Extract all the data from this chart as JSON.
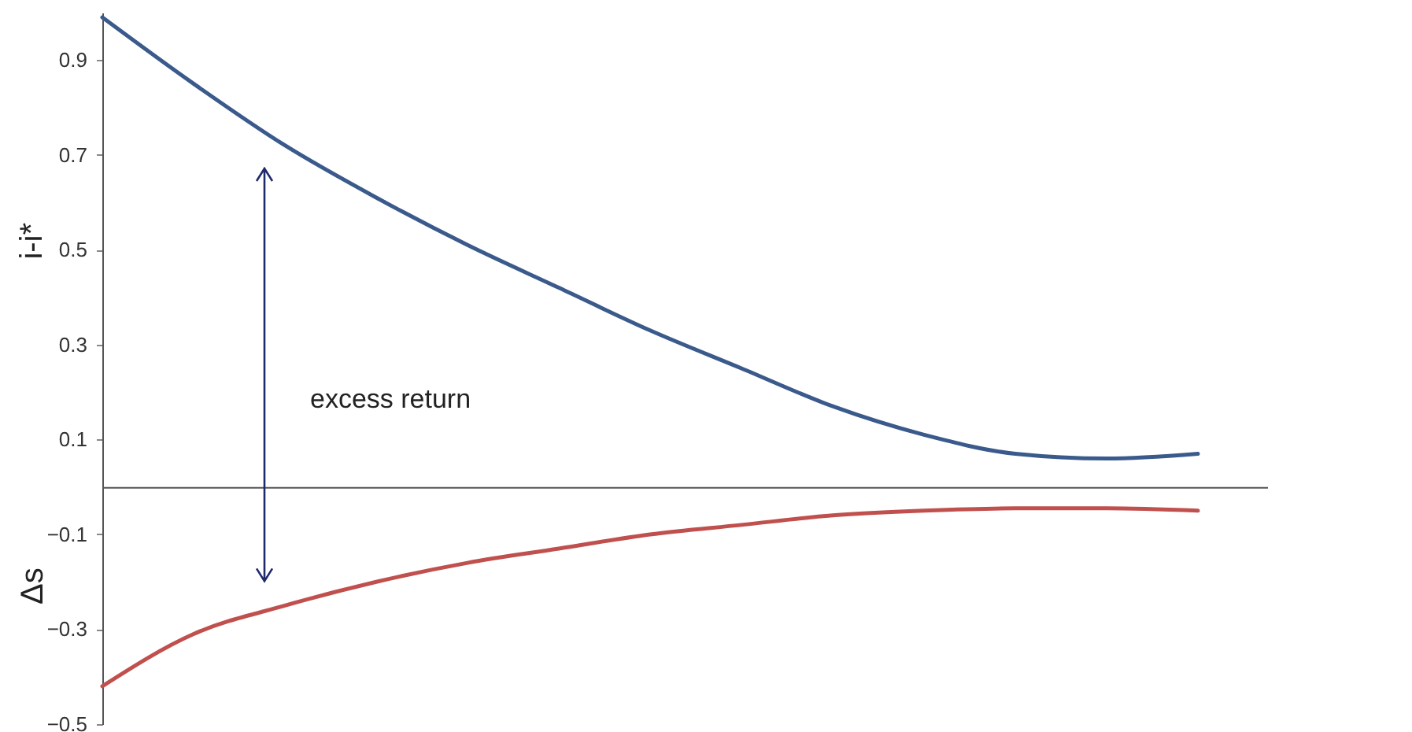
{
  "chart_data": {
    "type": "line",
    "ylabel": "i-i*",
    "annotations": [
      "excess return",
      "Δs"
    ],
    "categories": [
      null,
      null,
      null,
      null,
      null,
      null,
      null,
      null,
      null,
      null,
      null,
      null,
      null
    ],
    "series": [
      {
        "color": "#3b5a8c",
        "values": [
          0.99,
          0.85,
          0.72,
          0.61,
          0.51,
          0.42,
          0.33,
          0.25,
          0.17,
          0.11,
          0.07,
          0.06,
          0.07
        ]
      },
      {
        "color": "#c0504d",
        "values": [
          -0.42,
          -0.31,
          -0.25,
          -0.2,
          -0.16,
          -0.13,
          -0.1,
          -0.08,
          -0.06,
          -0.05,
          -0.045,
          -0.045,
          -0.05
        ]
      }
    ],
    "ylim": [
      -0.5,
      1.0
    ],
    "yticks": [
      0.9,
      0.7,
      0.5,
      0.3,
      0.1,
      -0.1,
      -0.3,
      -0.5
    ],
    "grid": false,
    "marker": "none",
    "line_style": "solid"
  }
}
